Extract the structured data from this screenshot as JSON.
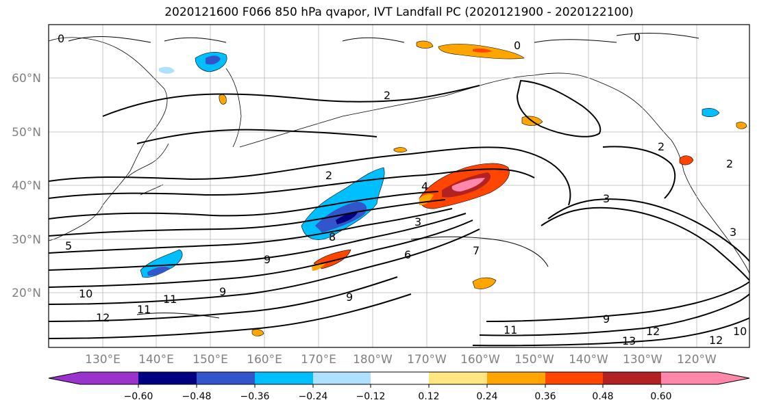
{
  "title": "2020121600 F066 850 hPa qvapor, IVT Landfall PC (2020121900 - 2020122100)",
  "latitude_labels": [
    "60°N",
    "50°N",
    "40°N",
    "30°N",
    "20°N"
  ],
  "longitude_labels": [
    "130°E",
    "140°E",
    "150°E",
    "160°E",
    "170°E",
    "180°W",
    "170°W",
    "160°W",
    "150°W",
    "140°W",
    "130°W",
    "120°W"
  ],
  "colorbar": {
    "ticks": [
      "−0.60",
      "−0.48",
      "−0.36",
      "−0.24",
      "−0.12",
      "0.12",
      "0.24",
      "0.36",
      "0.48",
      "0.60"
    ],
    "colors": [
      "#9933cc",
      "#000080",
      "#3355cc",
      "#00bfff",
      "#aee0ff",
      "#ffffff",
      "#ffe680",
      "#ffa500",
      "#ff4500",
      "#b22222",
      "#ff88aa"
    ]
  },
  "contour_labels": [
    "0",
    "0",
    "0",
    "2",
    "2",
    "2",
    "2",
    "4",
    "3",
    "3",
    "3",
    "5",
    "6",
    "7",
    "8",
    "9",
    "9",
    "9",
    "9",
    "10",
    "11",
    "11",
    "11",
    "12",
    "12",
    "12",
    "13",
    "10"
  ]
}
